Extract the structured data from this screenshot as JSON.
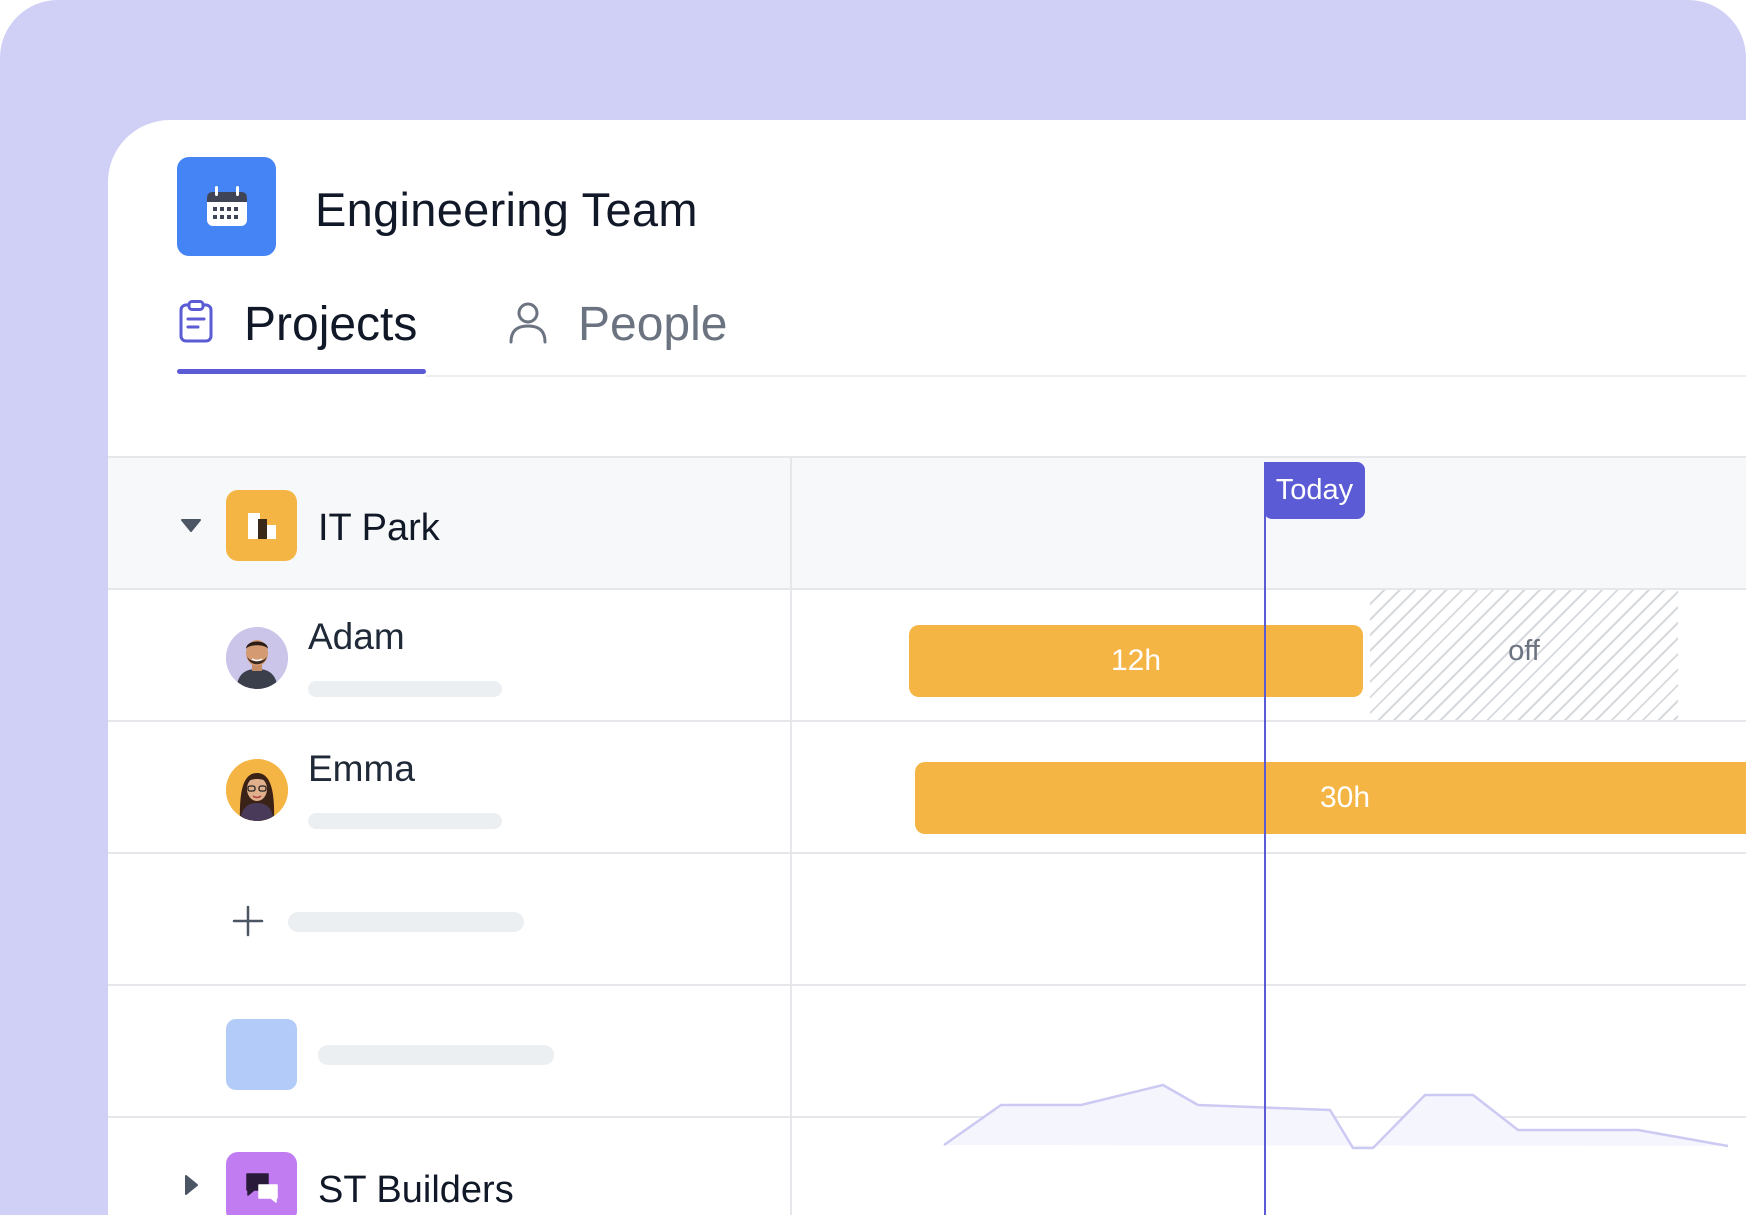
{
  "header": {
    "team_title": "Engineering Team",
    "app_icon": "calendar-icon",
    "app_icon_color": "#4484f4"
  },
  "tabs": [
    {
      "label": "Projects",
      "icon": "clipboard-icon",
      "active": true
    },
    {
      "label": "People",
      "icon": "user-icon",
      "active": false
    }
  ],
  "accent_color": "#5b5bd6",
  "today_label": "Today",
  "projects": [
    {
      "name": "IT Park",
      "icon": "building-icon",
      "color": "#f5b544",
      "expanded": true,
      "members": [
        {
          "name": "Adam",
          "avatar": "avatar-adam",
          "allocation": "12h",
          "time_off_label": "off"
        },
        {
          "name": "Emma",
          "avatar": "avatar-emma",
          "allocation": "30h"
        }
      ]
    },
    {
      "name": "ST Builders",
      "icon": "chat-icon",
      "color": "#c07cf0",
      "expanded": false
    }
  ],
  "bar_color": "#f5b544"
}
